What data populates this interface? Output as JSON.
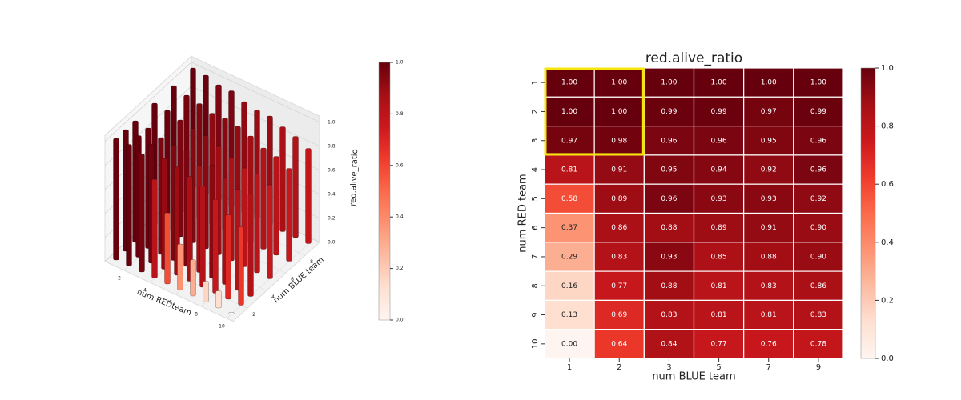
{
  "chart_data": [
    {
      "type": "bar3d",
      "xlabel": "num REDteam",
      "ylabel": "num BLUE team",
      "zlabel": "red.alive_ratio",
      "xlim": [
        1,
        10
      ],
      "ylim": [
        1,
        9
      ],
      "zlim": [
        0,
        1
      ],
      "xticks": [
        2,
        4,
        6,
        8,
        10
      ],
      "yticks": [
        2,
        4,
        6,
        8
      ],
      "zticks": [
        {
          "value": 0,
          "label": "0.0"
        },
        0.2,
        0.4,
        0.6,
        0.8,
        {
          "value": 1,
          "label": "1.0"
        }
      ],
      "colorbar_ticks": [
        {
          "value": 0,
          "label": "0.0"
        },
        0.2,
        0.4,
        0.6,
        0.8,
        {
          "value": 1,
          "label": "1.0"
        }
      ]
    },
    {
      "type": "heatmap",
      "title": "red.alive_ratio",
      "xlabel": "num BLUE team",
      "ylabel": "num RED team",
      "x": [
        1,
        2,
        3,
        5,
        7,
        9
      ],
      "y": [
        1,
        2,
        3,
        4,
        5,
        6,
        7,
        8,
        9,
        10
      ],
      "values": [
        [
          1,
          1,
          1,
          1,
          1,
          1
        ],
        [
          1,
          1,
          0.99,
          0.99,
          0.97,
          0.99
        ],
        [
          0.97,
          0.98,
          0.96,
          0.96,
          0.95,
          0.96
        ],
        [
          0.81,
          0.91,
          0.95,
          0.94,
          0.92,
          0.96
        ],
        [
          0.58,
          0.89,
          0.96,
          0.93,
          0.93,
          0.92
        ],
        [
          0.37,
          0.86,
          0.88,
          0.89,
          0.91,
          0.9
        ],
        [
          0.29,
          0.83,
          0.93,
          0.85,
          0.88,
          0.9
        ],
        [
          0.16,
          0.77,
          0.88,
          0.81,
          0.83,
          0.86
        ],
        [
          0.13,
          0.69,
          0.83,
          0.81,
          0.81,
          0.83
        ],
        [
          0,
          0.64,
          0.84,
          0.77,
          0.76,
          0.78
        ]
      ],
      "value_labels": [
        [
          "1.00",
          "1.00",
          "1.00",
          "1.00",
          "1.00",
          "1.00"
        ],
        [
          "1.00",
          "1.00",
          "0.99",
          "0.99",
          "0.97",
          "0.99"
        ],
        [
          "0.97",
          "0.98",
          "0.96",
          "0.96",
          "0.95",
          "0.96"
        ],
        [
          "0.81",
          "0.91",
          "0.95",
          "0.94",
          "0.92",
          "0.96"
        ],
        [
          "0.58",
          "0.89",
          "0.96",
          "0.93",
          "0.93",
          "0.92"
        ],
        [
          "0.37",
          "0.86",
          "0.88",
          "0.89",
          "0.91",
          "0.90"
        ],
        [
          "0.29",
          "0.83",
          "0.93",
          "0.85",
          "0.88",
          "0.90"
        ],
        [
          "0.16",
          "0.77",
          "0.88",
          "0.81",
          "0.83",
          "0.86"
        ],
        [
          "0.13",
          "0.69",
          "0.83",
          "0.81",
          "0.81",
          "0.83"
        ],
        [
          "0.00",
          "0.64",
          "0.84",
          "0.77",
          "0.76",
          "0.78"
        ]
      ],
      "colormap": "Reds",
      "clim": [
        0,
        1
      ],
      "colorbar_ticks": [
        {
          "value": 0,
          "label": "0.0"
        },
        0.2,
        0.4,
        0.6,
        0.8,
        {
          "value": 1,
          "label": "1.0"
        }
      ]
    }
  ]
}
